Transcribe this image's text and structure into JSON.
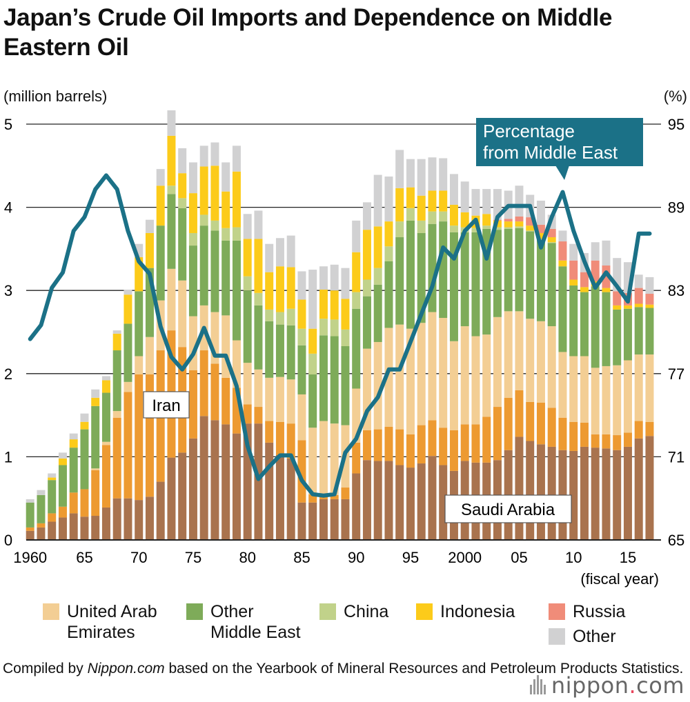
{
  "title": "Japan’s Crude Oil Imports and Dependence on Middle Eastern Oil",
  "left_unit": "(million barrels)",
  "right_unit": "(%)",
  "source": {
    "prefix": "Compiled by ",
    "italic": "Nippon.com",
    "suffix": " based on the Yearbook of Mineral Resources and Petroleum Products Statistics."
  },
  "brand": {
    "name": "nippon",
    "dot": ".",
    "tld": "com"
  },
  "chart_data": {
    "type": "bar",
    "stacked": true,
    "x_label": "(fiscal year)",
    "x_tick_labels": [
      "1960",
      "65",
      "70",
      "75",
      "80",
      "85",
      "90",
      "95",
      "2000",
      "05",
      "10",
      "15"
    ],
    "x_tick_years": [
      1960,
      1965,
      1970,
      1975,
      1980,
      1985,
      1990,
      1995,
      2000,
      2005,
      2010,
      2015
    ],
    "ylim_left": [
      0,
      5
    ],
    "y_ticks_left": [
      "0",
      "1",
      "2",
      "3",
      "4",
      "5"
    ],
    "ylim_right": [
      65,
      95
    ],
    "y_ticks_right": [
      "65",
      "71",
      "77",
      "83",
      "89",
      "95"
    ],
    "years": [
      1960,
      1961,
      1962,
      1963,
      1964,
      1965,
      1966,
      1967,
      1968,
      1969,
      1970,
      1971,
      1972,
      1973,
      1974,
      1975,
      1976,
      1977,
      1978,
      1979,
      1980,
      1981,
      1982,
      1983,
      1984,
      1985,
      1986,
      1987,
      1988,
      1989,
      1990,
      1991,
      1992,
      1993,
      1994,
      1995,
      1996,
      1997,
      1998,
      1999,
      2000,
      2001,
      2002,
      2003,
      2004,
      2005,
      2006,
      2007,
      2008,
      2009,
      2010,
      2011,
      2012,
      2013,
      2014,
      2015,
      2016,
      2017
    ],
    "series": [
      {
        "name": "Saudi Arabia",
        "color": "#a9734e",
        "values": [
          0.11,
          0.15,
          0.22,
          0.27,
          0.32,
          0.28,
          0.29,
          0.39,
          0.5,
          0.5,
          0.48,
          0.52,
          0.7,
          0.99,
          1.05,
          1.22,
          1.49,
          1.44,
          1.39,
          1.28,
          1.4,
          1.4,
          1.17,
          1.02,
          0.98,
          0.45,
          0.45,
          0.49,
          0.49,
          0.49,
          0.8,
          0.96,
          0.95,
          0.95,
          0.9,
          0.87,
          0.92,
          1.01,
          0.9,
          0.83,
          0.95,
          0.93,
          0.93,
          0.96,
          1.08,
          1.24,
          1.19,
          1.15,
          1.12,
          1.08,
          1.07,
          1.12,
          1.11,
          1.1,
          1.08,
          1.12,
          1.22,
          1.25
        ]
      },
      {
        "name": "Iran",
        "color": "#ed9a31",
        "values": [
          0.04,
          0.05,
          0.1,
          0.13,
          0.25,
          0.33,
          0.55,
          0.75,
          0.97,
          1.28,
          1.51,
          1.47,
          1.58,
          1.53,
          1.27,
          0.82,
          0.79,
          0.68,
          0.56,
          0.55,
          0.23,
          0.2,
          0.26,
          0.4,
          0.42,
          0.75,
          0.1,
          0.04,
          0.05,
          0.14,
          0.37,
          0.36,
          0.38,
          0.41,
          0.43,
          0.4,
          0.46,
          0.43,
          0.45,
          0.49,
          0.44,
          0.46,
          0.55,
          0.64,
          0.63,
          0.56,
          0.47,
          0.5,
          0.47,
          0.39,
          0.35,
          0.29,
          0.16,
          0.17,
          0.18,
          0.17,
          0.21,
          0.17
        ]
      },
      {
        "name": "United Arab Emirates",
        "color": "#f3ce94",
        "values": [
          0,
          0,
          0,
          0,
          0,
          0,
          0.02,
          0.04,
          0.08,
          0.12,
          0.22,
          0.45,
          0.6,
          0.74,
          0.8,
          0.65,
          0.54,
          0.62,
          0.75,
          0.57,
          0.5,
          0.45,
          0.52,
          0.54,
          0.53,
          0.55,
          0.8,
          0.9,
          0.86,
          0.75,
          0.65,
          0.98,
          1.05,
          1.19,
          1.26,
          1.27,
          1.23,
          1.3,
          1.32,
          1.07,
          1.18,
          1.06,
          0.99,
          1.08,
          1.04,
          0.95,
          1.0,
          0.98,
          0.98,
          0.79,
          0.79,
          0.8,
          0.8,
          0.82,
          0.84,
          0.87,
          0.8,
          0.81
        ]
      },
      {
        "name": "Other Middle East",
        "color": "#7eab59",
        "values": [
          0.3,
          0.34,
          0.4,
          0.5,
          0.54,
          0.72,
          0.75,
          0.59,
          0.73,
          0.7,
          0.78,
          0.83,
          0.9,
          0.9,
          0.87,
          0.85,
          0.96,
          0.98,
          0.9,
          1.2,
          0.87,
          0.77,
          0.68,
          0.63,
          0.65,
          0.59,
          0.64,
          1.03,
          1.05,
          0.95,
          0.96,
          0.63,
          0.69,
          0.8,
          1.05,
          1.3,
          1.08,
          1.06,
          1.16,
          1.31,
          1.13,
          1.25,
          1.27,
          1.05,
          0.99,
          1.0,
          1.05,
          0.98,
          1.0,
          1.03,
          0.85,
          0.77,
          0.98,
          0.89,
          0.67,
          0.62,
          0.57,
          0.56
        ]
      },
      {
        "name": "China",
        "color": "#c1d28a",
        "values": [
          0,
          0,
          0,
          0,
          0,
          0,
          0,
          0,
          0,
          0,
          0,
          0,
          0,
          0.1,
          0.12,
          0.15,
          0.13,
          0.12,
          0.15,
          0.16,
          0.17,
          0.15,
          0.14,
          0.15,
          0.2,
          0.2,
          0.25,
          0.2,
          0.2,
          0.2,
          0.2,
          0.2,
          0.2,
          0.18,
          0.19,
          0.15,
          0.15,
          0.15,
          0.12,
          0.08,
          0.06,
          0.05,
          0.04,
          0.03,
          0.02,
          0.02,
          0.01,
          0.01,
          0.01,
          0,
          0,
          0,
          0,
          0,
          0,
          0,
          0,
          0
        ]
      },
      {
        "name": "Indonesia",
        "color": "#fccb1a",
        "values": [
          0,
          0,
          0.03,
          0.08,
          0.1,
          0.09,
          0.1,
          0.15,
          0.2,
          0.35,
          0.41,
          0.42,
          0.48,
          0.6,
          0.3,
          0.48,
          0.58,
          0.66,
          0.44,
          0.67,
          0.45,
          0.65,
          0.45,
          0.55,
          0.5,
          0.35,
          0.3,
          0.35,
          0.35,
          0.37,
          0.48,
          0.6,
          0.5,
          0.3,
          0.4,
          0.25,
          0.3,
          0.25,
          0.25,
          0.25,
          0.18,
          0.15,
          0.14,
          0.08,
          0.07,
          0.06,
          0.06,
          0.07,
          0.06,
          0.07,
          0.07,
          0.06,
          0.06,
          0.05,
          0.05,
          0.04,
          0.04,
          0.04
        ]
      },
      {
        "name": "Russia",
        "color": "#f08c79",
        "values": [
          0,
          0,
          0,
          0,
          0,
          0,
          0,
          0,
          0,
          0,
          0,
          0,
          0,
          0,
          0,
          0,
          0,
          0,
          0,
          0,
          0,
          0,
          0,
          0,
          0,
          0,
          0,
          0,
          0,
          0,
          0,
          0,
          0,
          0,
          0,
          0,
          0,
          0,
          0,
          0,
          0,
          0,
          0,
          0.01,
          0.03,
          0.06,
          0.1,
          0.1,
          0.1,
          0.23,
          0.23,
          0.18,
          0.25,
          0.27,
          0.17,
          0.15,
          0.19,
          0.13
        ]
      },
      {
        "name": "Other",
        "color": "#d1d1d2",
        "values": [
          0.04,
          0.06,
          0.05,
          0.07,
          0.07,
          0.1,
          0.1,
          0.05,
          0.04,
          0.06,
          0.16,
          0.16,
          0.2,
          0.4,
          0.3,
          0.37,
          0.25,
          0.28,
          0.35,
          0.31,
          0.3,
          0.34,
          0.34,
          0.34,
          0.38,
          0.34,
          0.71,
          0.28,
          0.31,
          0.37,
          0.38,
          0.33,
          0.62,
          0.54,
          0.46,
          0.34,
          0.44,
          0.4,
          0.39,
          0.37,
          0.37,
          0.32,
          0.3,
          0.37,
          0.34,
          0.37,
          0.27,
          0.29,
          0.17,
          0.13,
          0.2,
          0.23,
          0.22,
          0.3,
          0.4,
          0.37,
          0.16,
          0.2
        ]
      }
    ],
    "line": {
      "name": "Percentage from Middle East",
      "color": "#1b7187",
      "axis": "right",
      "values": [
        79.5,
        80.5,
        83.2,
        84.3,
        87.3,
        88.3,
        90.3,
        91.3,
        90.3,
        87.3,
        85.1,
        84.2,
        80.4,
        78.2,
        77.3,
        78.4,
        80.3,
        78.3,
        78.3,
        76.1,
        71.8,
        69.4,
        70.3,
        71.1,
        71.1,
        69.3,
        68.3,
        68.2,
        68.3,
        71.3,
        72.3,
        74.3,
        75.3,
        77.3,
        77.3,
        79.3,
        81.3,
        83.3,
        86.1,
        85.3,
        87.3,
        88.1,
        85.3,
        88.3,
        89.1,
        89.1,
        89.1,
        86.1,
        88.3,
        90.1,
        87.3,
        85.1,
        83.2,
        84.3,
        83.3,
        82.2,
        87.1,
        87.1
      ]
    },
    "annotations": [
      {
        "label": "Iran",
        "callout": false
      },
      {
        "label": "Saudi Arabia",
        "callout": false
      },
      {
        "label": "Percentage\nfrom Middle East",
        "callout": true
      }
    ],
    "legend": [
      {
        "label": "United Arab\nEmirates",
        "color": "#f3ce94"
      },
      {
        "label": "Other\nMiddle East",
        "color": "#7eab59"
      },
      {
        "label": "China",
        "color": "#c1d28a"
      },
      {
        "label": "Indonesia",
        "color": "#fccb1a"
      },
      {
        "label": "Russia",
        "color": "#f08c79"
      },
      {
        "label": "Other",
        "color": "#d1d1d2"
      }
    ],
    "legend_position": "bottom",
    "grid": "horizontal"
  }
}
